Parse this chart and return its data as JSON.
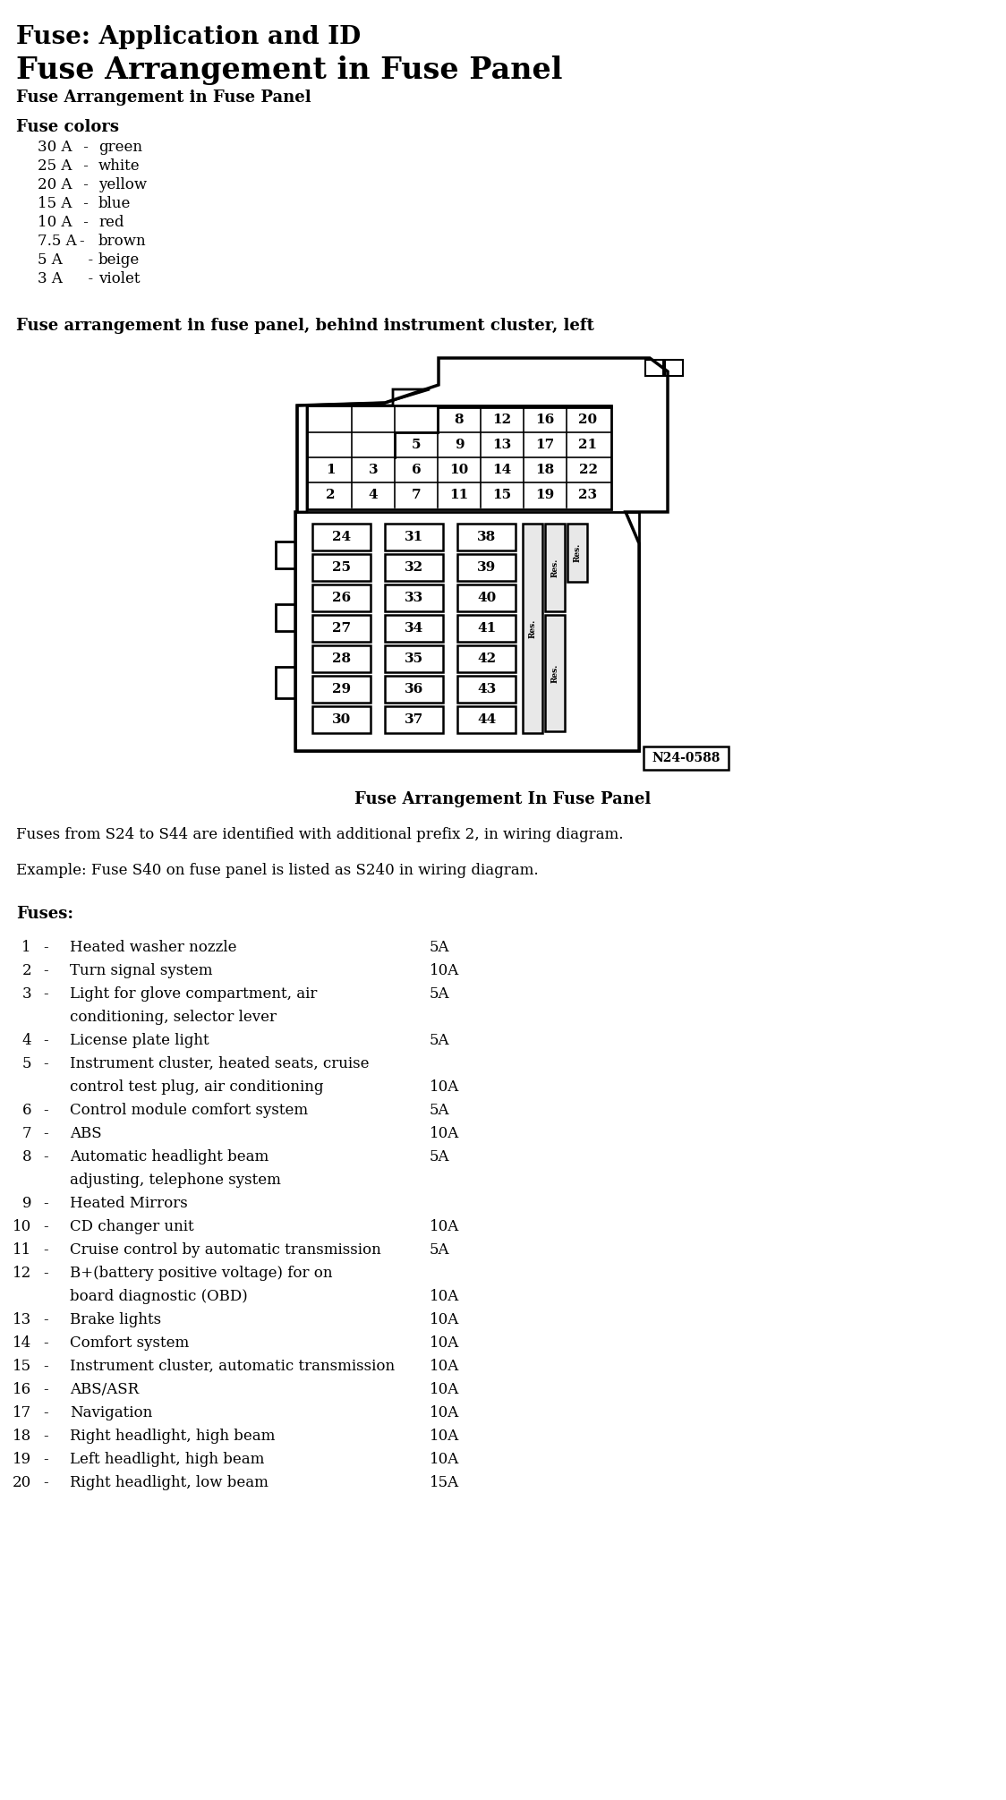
{
  "title1": "Fuse: Application and ID",
  "title2": "Fuse Arrangement in Fuse Panel",
  "title3": "Fuse Arrangement in Fuse Panel",
  "fuse_colors_header": "Fuse colors",
  "fuse_colors": [
    [
      "30 A",
      " -",
      "green"
    ],
    [
      "25 A",
      " -",
      "white"
    ],
    [
      "20 A",
      " -",
      "yellow"
    ],
    [
      "15 A",
      " -",
      "blue"
    ],
    [
      "10 A",
      " -",
      "red"
    ],
    [
      "7.5 A",
      "-",
      "brown"
    ],
    [
      "5 A",
      "  -",
      "beige"
    ],
    [
      "3 A",
      "  -",
      "violet"
    ]
  ],
  "diagram_label": "Fuse arrangement in fuse panel, behind instrument cluster, left",
  "diagram_caption": "Fuse Arrangement In Fuse Panel",
  "diagram_id": "N24-0588",
  "note1": "Fuses from S24 to S44 are identified with additional prefix 2, in wiring diagram.",
  "note2": "Example: Fuse S40 on fuse panel is listed as S240 in wiring diagram.",
  "fuses_header": "Fuses:",
  "fuses": [
    [
      "1",
      "-",
      "Heated washer nozzle",
      "5A",
      false
    ],
    [
      "2",
      "-",
      "Turn signal system",
      "10A",
      false
    ],
    [
      "3",
      "-",
      "Light for glove compartment, air",
      "5A",
      true,
      "conditioning, selector lever"
    ],
    [
      "4",
      "-",
      "License plate light",
      "5A",
      false
    ],
    [
      "5",
      "-",
      "Instrument cluster, heated seats, cruise",
      "",
      true,
      "control test plug, air conditioning",
      "10A"
    ],
    [
      "6",
      "-",
      "Control module comfort system",
      "5A",
      false
    ],
    [
      "7",
      "-",
      "ABS",
      "10A",
      false
    ],
    [
      "8",
      "-",
      "Automatic headlight beam",
      "5A",
      true,
      "adjusting, telephone system"
    ],
    [
      "9",
      "-",
      "Heated Mirrors",
      "",
      false
    ],
    [
      "10",
      "-",
      "CD changer unit",
      "10A",
      false
    ],
    [
      "11",
      "-",
      "Cruise control by automatic transmission",
      "5A",
      false
    ],
    [
      "12",
      "-",
      "B+(battery positive voltage) for on",
      "",
      true,
      "board diagnostic (OBD)",
      "10A"
    ],
    [
      "13",
      "-",
      "Brake lights",
      "10A",
      false
    ],
    [
      "14",
      "-",
      "Comfort system",
      "10A",
      false
    ],
    [
      "15",
      "-",
      "Instrument cluster, automatic transmission",
      "10A",
      false
    ],
    [
      "16",
      "-",
      "ABS/ASR",
      "10A",
      false
    ],
    [
      "17",
      "-",
      "Navigation",
      "10A",
      false
    ],
    [
      "18",
      "-",
      "Right headlight, high beam",
      "10A",
      false
    ],
    [
      "19",
      "-",
      "Left headlight, high beam",
      "10A",
      false
    ],
    [
      "20",
      "-",
      "Right headlight, low beam",
      "15A",
      false
    ]
  ],
  "bg_color": "#ffffff",
  "text_color": "#000000"
}
